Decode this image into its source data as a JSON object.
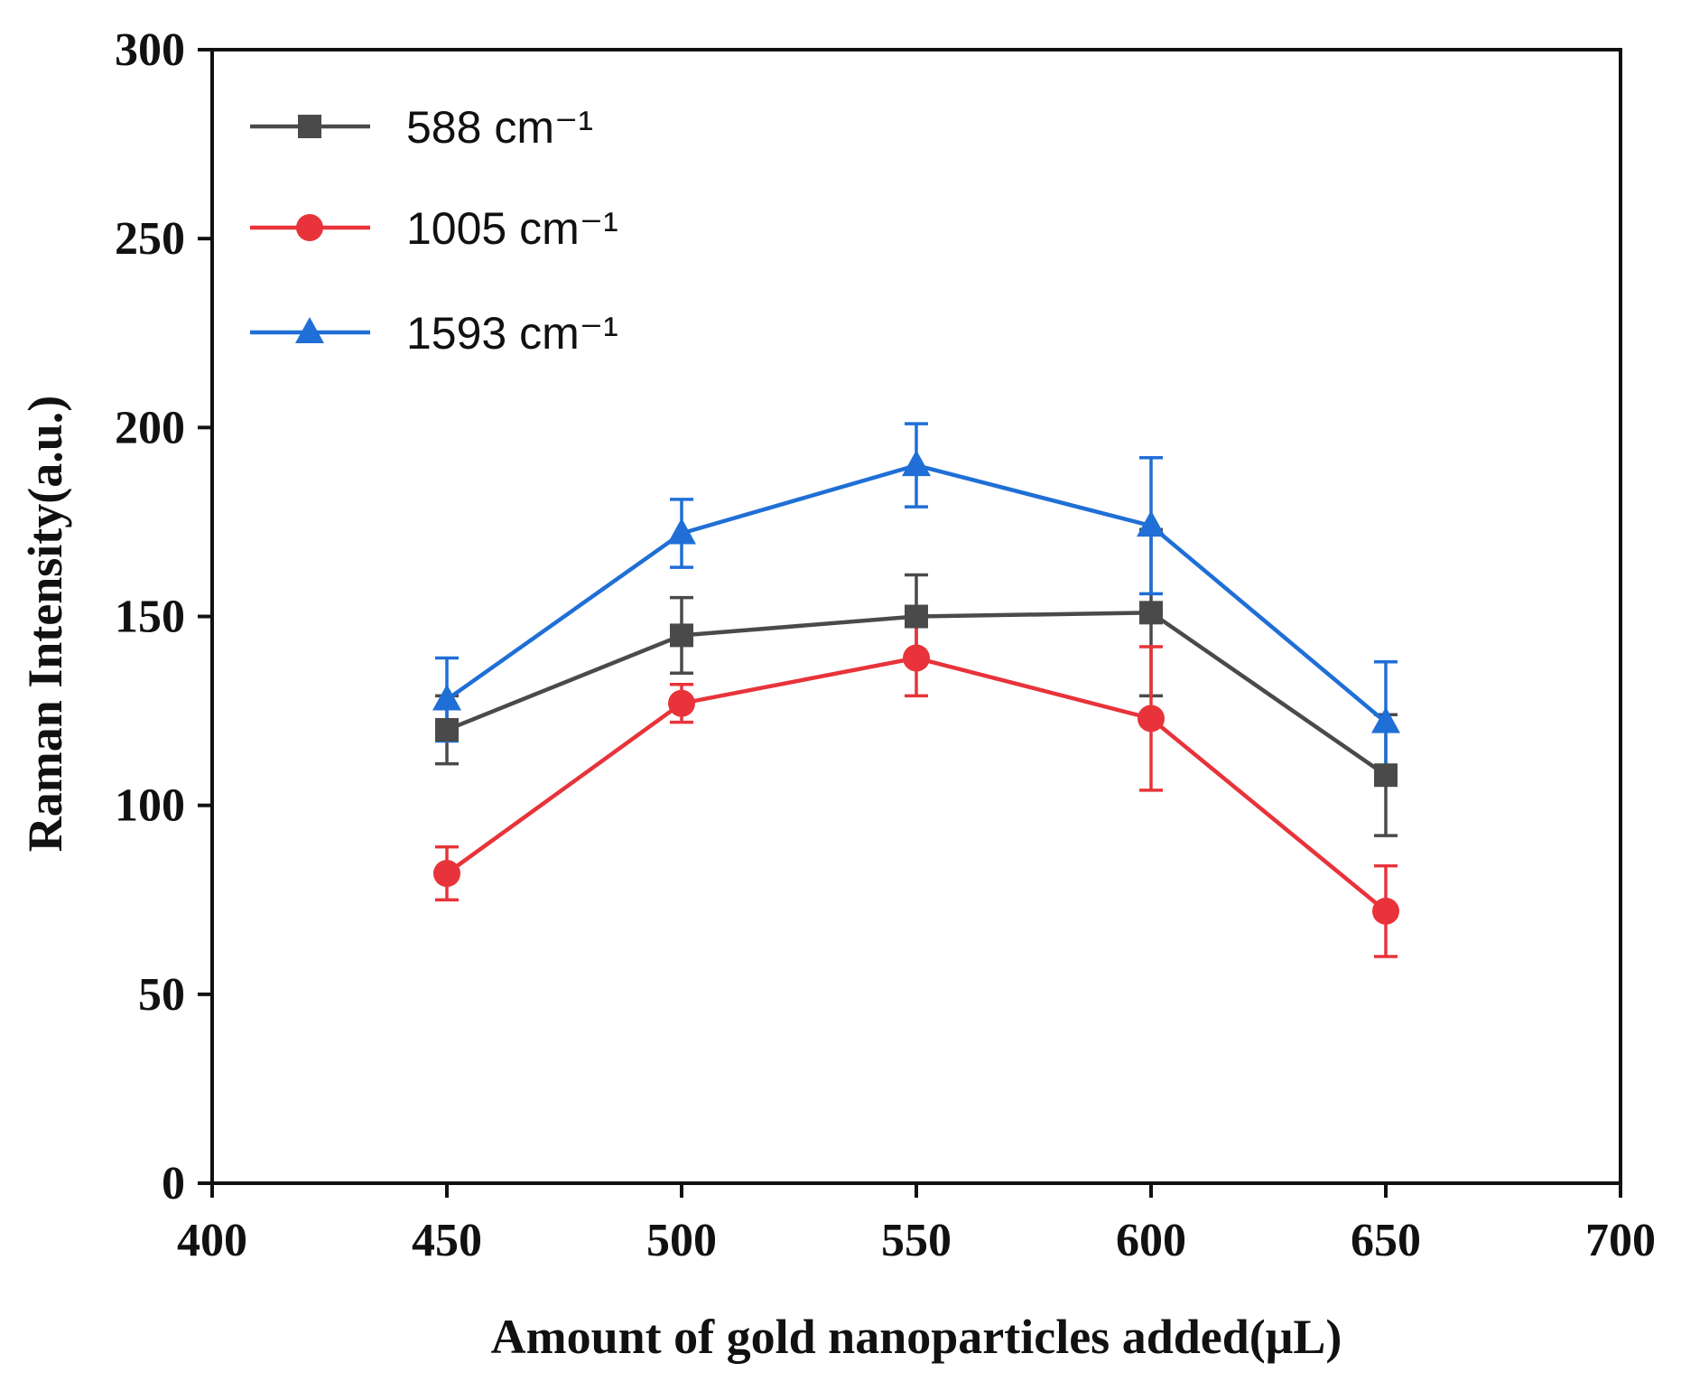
{
  "chart_data": {
    "type": "line",
    "title": "",
    "xlabel": "Amount of gold nanoparticles added(μL)",
    "ylabel": "Raman Intensity(a.u.)",
    "xlim": [
      400,
      700
    ],
    "ylim": [
      0,
      300
    ],
    "x_ticks": [
      400,
      450,
      500,
      550,
      600,
      650,
      700
    ],
    "y_ticks": [
      0,
      50,
      100,
      150,
      200,
      250,
      300
    ],
    "legend_position": "top-left",
    "x": [
      450,
      500,
      550,
      600,
      650
    ],
    "series": [
      {
        "name": "588 cm⁻¹",
        "color": "#4a4a4a",
        "marker": "square",
        "values": [
          120,
          145,
          150,
          151,
          108
        ],
        "errors": [
          9,
          10,
          11,
          22,
          16
        ]
      },
      {
        "name": "1005 cm⁻¹",
        "color": "#e8333a",
        "marker": "circle",
        "values": [
          82,
          127,
          139,
          123,
          72
        ],
        "errors": [
          7,
          5,
          10,
          19,
          12
        ]
      },
      {
        "name": "1593 cm⁻¹",
        "color": "#1f6fd6",
        "marker": "triangle",
        "values": [
          128,
          172,
          190,
          174,
          122
        ],
        "errors": [
          11,
          9,
          11,
          18,
          16
        ]
      }
    ]
  }
}
